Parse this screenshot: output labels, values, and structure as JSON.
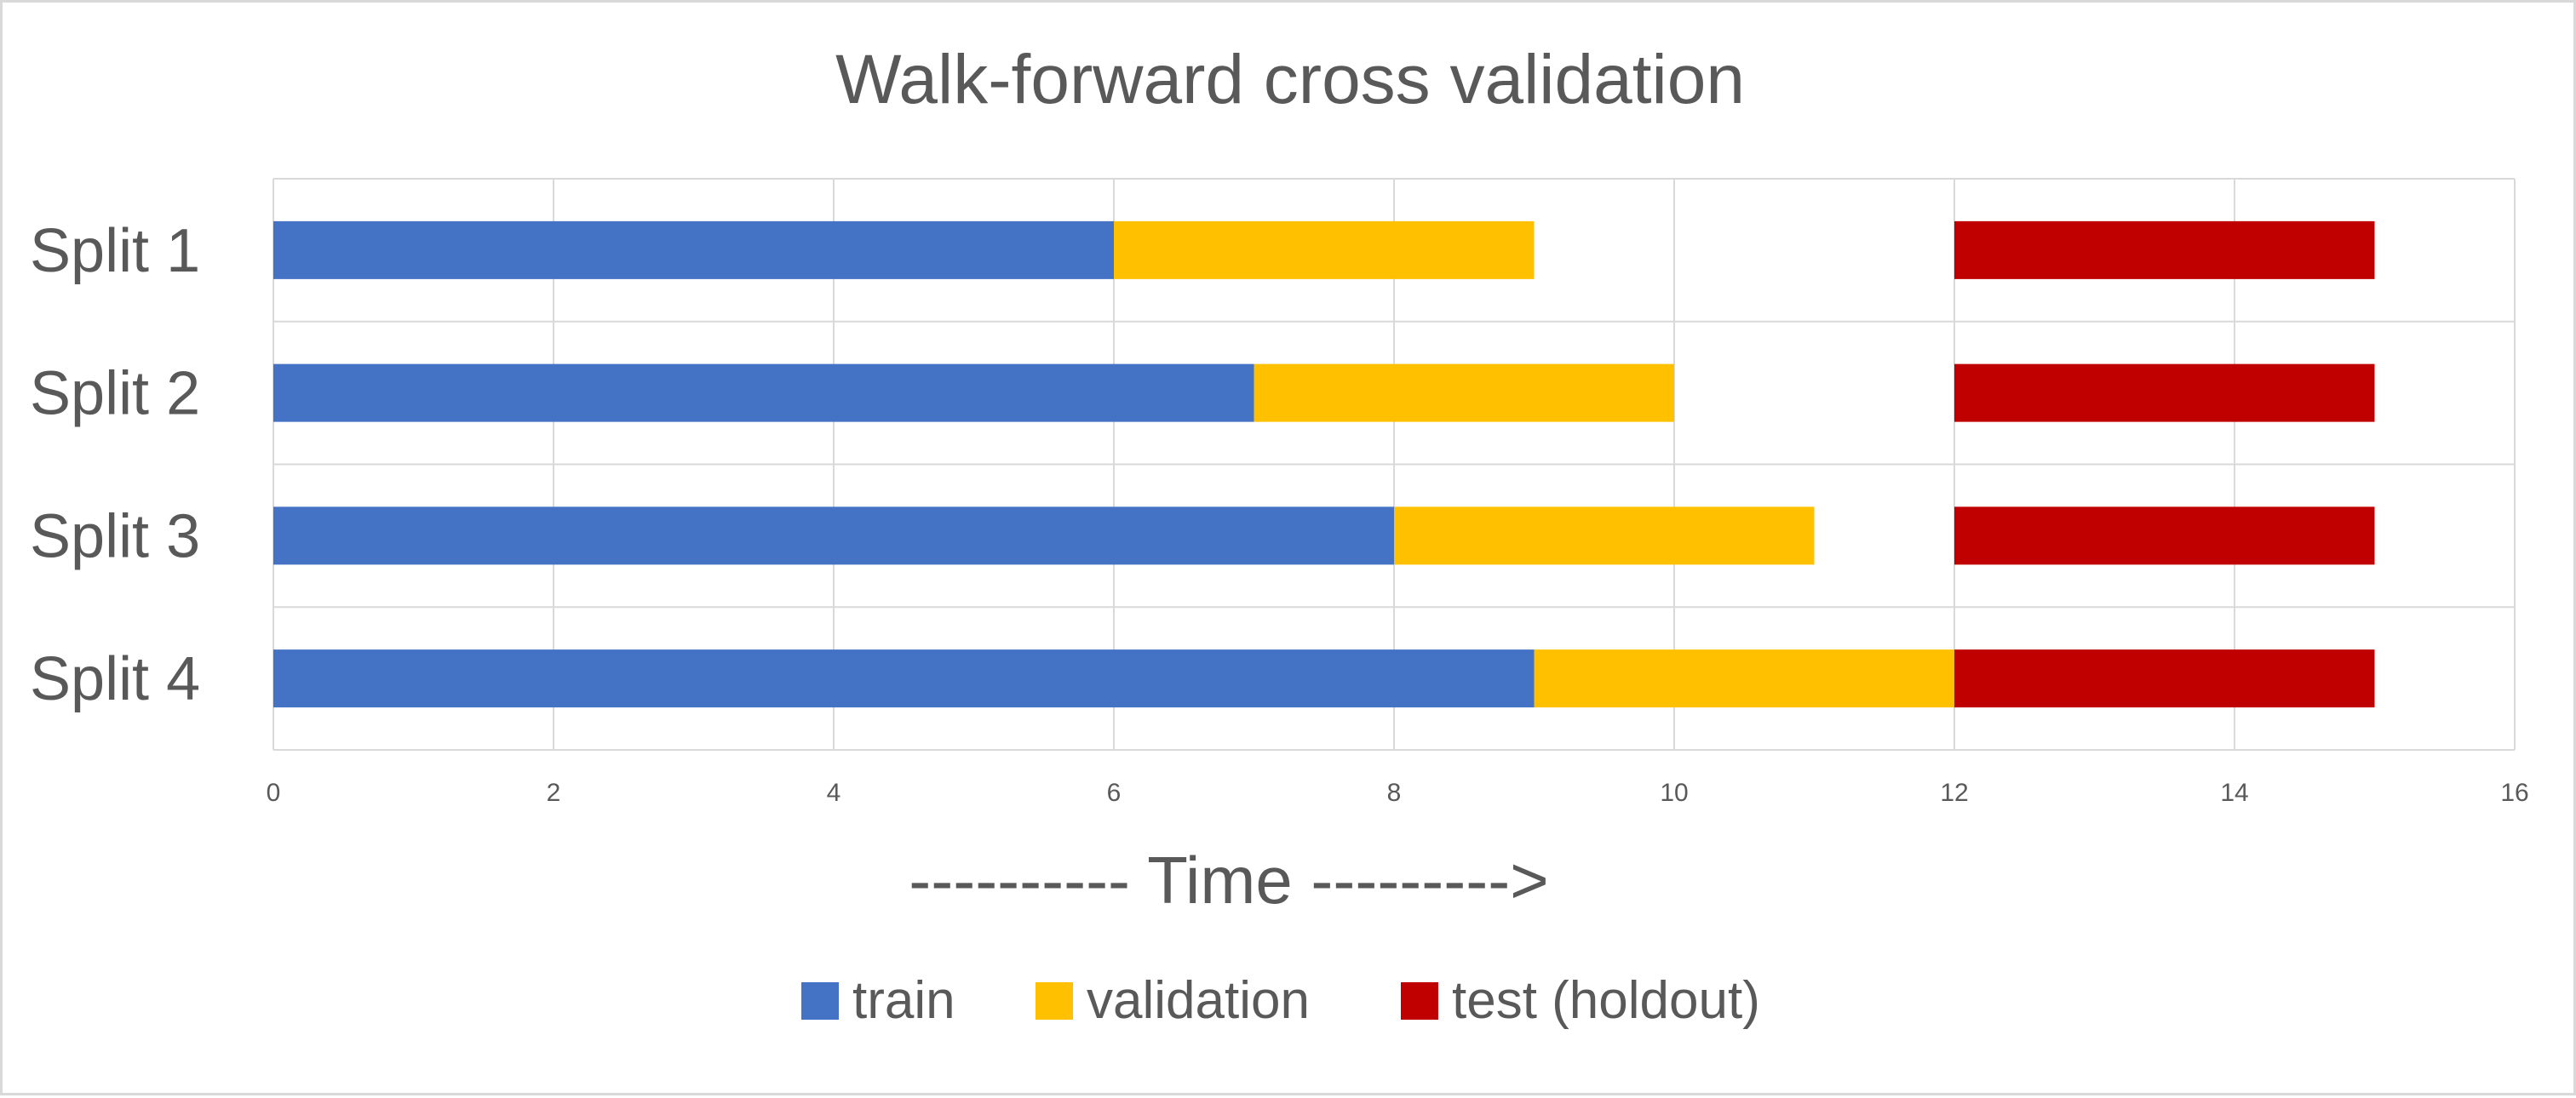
{
  "chart_data": {
    "type": "bar",
    "orientation": "horizontal",
    "stacked": true,
    "title": "Walk-forward cross validation",
    "xlabel": "---------- Time --------->",
    "ylabel": "",
    "xlim": [
      0,
      16
    ],
    "xticks": [
      "0",
      "2",
      "4",
      "6",
      "8",
      "10",
      "12",
      "14",
      "16"
    ],
    "grid": true,
    "legend_position": "bottom",
    "categories": [
      "Split 1",
      "Split 2",
      "Split 3",
      "Split 4"
    ],
    "segments": [
      {
        "category": "Split 1",
        "series": "train",
        "start": 0,
        "end": 6
      },
      {
        "category": "Split 1",
        "series": "validation",
        "start": 6,
        "end": 9
      },
      {
        "category": "Split 1",
        "series": "test (holdout)",
        "start": 12,
        "end": 15
      },
      {
        "category": "Split 2",
        "series": "train",
        "start": 0,
        "end": 7
      },
      {
        "category": "Split 2",
        "series": "validation",
        "start": 7,
        "end": 10
      },
      {
        "category": "Split 2",
        "series": "test (holdout)",
        "start": 12,
        "end": 15
      },
      {
        "category": "Split 3",
        "series": "train",
        "start": 0,
        "end": 8
      },
      {
        "category": "Split 3",
        "series": "validation",
        "start": 8,
        "end": 11
      },
      {
        "category": "Split 3",
        "series": "test (holdout)",
        "start": 12,
        "end": 15
      },
      {
        "category": "Split 4",
        "series": "train",
        "start": 0,
        "end": 9
      },
      {
        "category": "Split 4",
        "series": "validation",
        "start": 9,
        "end": 12
      },
      {
        "category": "Split 4",
        "series": "test (holdout)",
        "start": 12,
        "end": 15
      }
    ],
    "series": [
      {
        "name": "train",
        "color": "#4472C4"
      },
      {
        "name": "validation",
        "color": "#FFC000"
      },
      {
        "name": "test (holdout)",
        "color": "#C00000"
      }
    ]
  },
  "colors": {
    "text": "#595959",
    "grid": "#d9d9d9",
    "background": "#ffffff"
  }
}
